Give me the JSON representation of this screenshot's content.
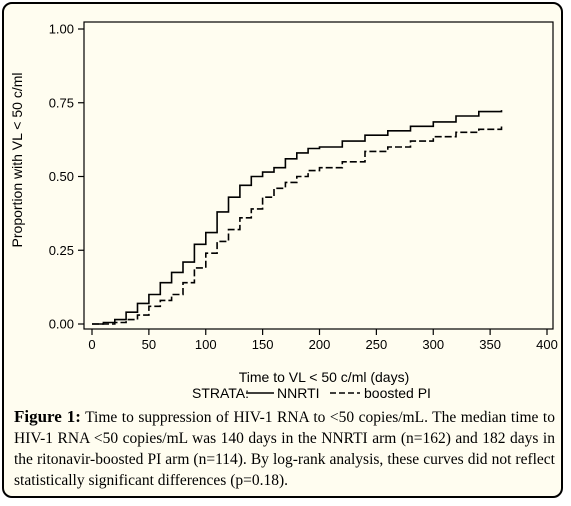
{
  "chart_data": {
    "type": "line",
    "subtype": "kaplan-meier step curve",
    "xlabel": "Time to VL < 50 c/ml (days)",
    "ylabel": "Proportion with VL < 50 c/ml",
    "xlim": [
      0,
      400
    ],
    "ylim": [
      0,
      1
    ],
    "x_ticks": [
      "0",
      "50",
      "100",
      "150",
      "200",
      "250",
      "300",
      "350",
      "400"
    ],
    "y_ticks": [
      "0.00",
      "0.25",
      "0.50",
      "0.75",
      "1.00"
    ],
    "x_tick_values": [
      0,
      50,
      100,
      150,
      200,
      250,
      300,
      350,
      400
    ],
    "y_tick_values": [
      0,
      0.25,
      0.5,
      0.75,
      1
    ],
    "grid": false,
    "legend": {
      "position": "bottom",
      "title": "STRATA:",
      "entries": [
        "NNRTI",
        "boosted PI"
      ]
    },
    "series": [
      {
        "name": "NNRTI",
        "line_style": "solid",
        "points": [
          [
            0,
            0
          ],
          [
            10,
            0.005
          ],
          [
            20,
            0.015
          ],
          [
            30,
            0.04
          ],
          [
            40,
            0.07
          ],
          [
            50,
            0.1
          ],
          [
            60,
            0.14
          ],
          [
            70,
            0.175
          ],
          [
            80,
            0.21
          ],
          [
            90,
            0.27
          ],
          [
            100,
            0.31
          ],
          [
            110,
            0.38
          ],
          [
            120,
            0.43
          ],
          [
            130,
            0.47
          ],
          [
            140,
            0.5
          ],
          [
            150,
            0.515
          ],
          [
            160,
            0.53
          ],
          [
            170,
            0.56
          ],
          [
            180,
            0.58
          ],
          [
            190,
            0.595
          ],
          [
            200,
            0.6
          ],
          [
            220,
            0.62
          ],
          [
            240,
            0.64
          ],
          [
            260,
            0.655
          ],
          [
            280,
            0.67
          ],
          [
            300,
            0.685
          ],
          [
            320,
            0.705
          ],
          [
            340,
            0.72
          ],
          [
            360,
            0.725
          ]
        ]
      },
      {
        "name": "boosted PI",
        "line_style": "dashed",
        "points": [
          [
            0,
            0
          ],
          [
            10,
            0
          ],
          [
            20,
            0.005
          ],
          [
            30,
            0.015
          ],
          [
            40,
            0.03
          ],
          [
            50,
            0.06
          ],
          [
            60,
            0.08
          ],
          [
            70,
            0.1
          ],
          [
            80,
            0.14
          ],
          [
            90,
            0.19
          ],
          [
            100,
            0.24
          ],
          [
            110,
            0.28
          ],
          [
            120,
            0.32
          ],
          [
            130,
            0.36
          ],
          [
            140,
            0.39
          ],
          [
            150,
            0.43
          ],
          [
            160,
            0.46
          ],
          [
            170,
            0.48
          ],
          [
            180,
            0.5
          ],
          [
            190,
            0.52
          ],
          [
            200,
            0.53
          ],
          [
            220,
            0.55
          ],
          [
            240,
            0.585
          ],
          [
            260,
            0.6
          ],
          [
            280,
            0.62
          ],
          [
            300,
            0.635
          ],
          [
            320,
            0.65
          ],
          [
            340,
            0.66
          ],
          [
            360,
            0.67
          ]
        ]
      }
    ]
  },
  "caption": {
    "label": "Figure 1:",
    "text": "Time to suppression of HIV-1 RNA to <50 copies/mL. The median time to HIV-1 RNA <50 copies/mL was 140 days in the NNRTI arm (n=162) and 182 days in the ritonavir-boosted PI arm (n=114). By log-rank analysis, these curves did not reflect statistically significant differences (p=0.18)."
  }
}
